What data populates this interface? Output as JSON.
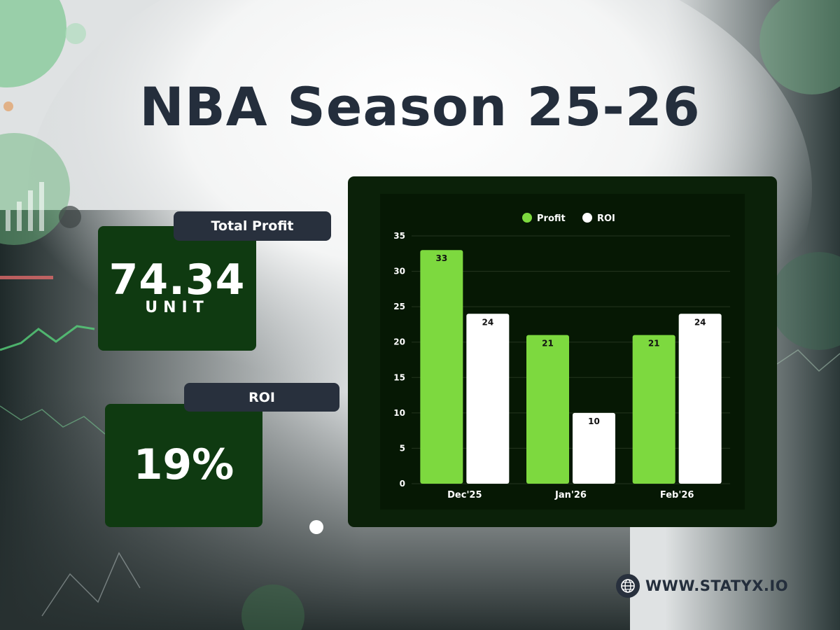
{
  "title": "NBA Season 25-26",
  "stats": {
    "profit": {
      "label": "Total Profit",
      "value": "74.34",
      "unit": "UNIT"
    },
    "roi": {
      "label": "ROI",
      "value": "19%"
    }
  },
  "footer": {
    "website": "WWW.STATYX.IO",
    "icon": "globe-icon"
  },
  "colors": {
    "profit": "#7dd93f",
    "roi": "#ffffff",
    "panel": "#0f3a11",
    "label_bg": "#28303d",
    "title": "#242e3c"
  },
  "chart_data": {
    "type": "bar",
    "categories": [
      "Dec'25",
      "Jan'26",
      "Feb'26"
    ],
    "series": [
      {
        "name": "Profit",
        "values": [
          33,
          21,
          21
        ]
      },
      {
        "name": "ROI",
        "values": [
          24,
          10,
          24
        ]
      }
    ],
    "yticks": [
      0,
      5,
      10,
      15,
      20,
      25,
      30,
      35
    ],
    "ylim": [
      0,
      35
    ],
    "legend": "top-center",
    "grid": true
  }
}
